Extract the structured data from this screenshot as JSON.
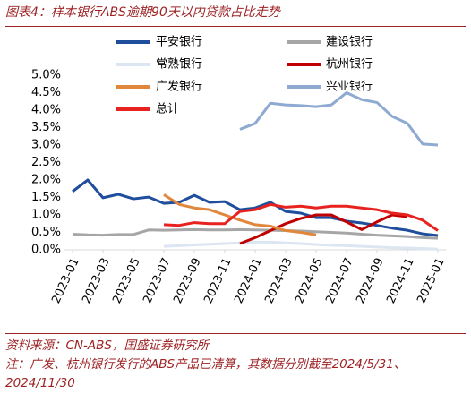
{
  "chart_data": {
    "type": "line",
    "title": "图表4：样本银行ABS逾期90天以内贷款占比走势",
    "categories": [
      "2023-01",
      null,
      "2023-03",
      null,
      "2023-05",
      null,
      "2023-07",
      null,
      "2023-09",
      null,
      "2023-11",
      null,
      "2024-01",
      null,
      "2024-03",
      null,
      "2024-05",
      null,
      "2024-07",
      null,
      "2024-09",
      null,
      "2024-11",
      null,
      "2025-01"
    ],
    "series": [
      {
        "name": "平安银行",
        "color": "#1f4e9c",
        "values": [
          1.67,
          2.0,
          1.49,
          1.59,
          1.46,
          1.51,
          1.33,
          1.36,
          1.56,
          1.36,
          1.38,
          1.15,
          1.2,
          1.36,
          1.1,
          1.05,
          0.92,
          0.92,
          0.82,
          0.77,
          0.7,
          0.62,
          0.56,
          0.46,
          0.41
        ]
      },
      {
        "name": "建设银行",
        "color": "#a6a6a6",
        "values": [
          0.45,
          0.43,
          0.42,
          0.44,
          0.44,
          0.57,
          0.56,
          0.57,
          0.58,
          0.57,
          0.57,
          0.58,
          0.57,
          0.56,
          0.55,
          0.54,
          0.52,
          0.5,
          0.48,
          0.45,
          0.42,
          0.4,
          0.38,
          0.35,
          0.33
        ]
      },
      {
        "name": "常熟银行",
        "color": "#dce6f2",
        "values": [
          null,
          null,
          null,
          null,
          null,
          null,
          0.1,
          0.12,
          0.14,
          0.16,
          0.18,
          0.2,
          0.22,
          0.22,
          0.2,
          0.18,
          0.15,
          0.13,
          0.12,
          0.1,
          0.08,
          0.06,
          0.05,
          0.04,
          0.02
        ]
      },
      {
        "name": "杭州银行",
        "color": "#c00000",
        "values": [
          null,
          null,
          null,
          null,
          null,
          null,
          null,
          null,
          null,
          null,
          null,
          0.18,
          0.35,
          0.55,
          0.75,
          0.9,
          1.0,
          1.0,
          0.8,
          0.58,
          0.8,
          1.0,
          0.95,
          null,
          null
        ]
      },
      {
        "name": "广发银行",
        "color": "#e0873c",
        "values": [
          null,
          null,
          null,
          null,
          null,
          null,
          1.58,
          1.3,
          1.2,
          1.15,
          1.0,
          0.85,
          0.72,
          0.68,
          0.55,
          0.5,
          0.43,
          null,
          null,
          null,
          null,
          null,
          null,
          null,
          null
        ]
      },
      {
        "name": "兴业银行",
        "color": "#8eaad2",
        "values": [
          null,
          null,
          null,
          null,
          null,
          null,
          null,
          null,
          null,
          null,
          null,
          3.45,
          3.62,
          4.2,
          4.15,
          4.13,
          4.1,
          4.15,
          4.5,
          4.3,
          4.22,
          3.82,
          3.62,
          3.03,
          3.0
        ]
      },
      {
        "name": "总计",
        "color": "#e8221e",
        "values": [
          null,
          null,
          null,
          null,
          null,
          null,
          0.72,
          0.7,
          0.78,
          0.75,
          0.75,
          1.1,
          1.15,
          1.3,
          1.22,
          1.25,
          1.2,
          1.25,
          1.25,
          1.2,
          1.15,
          1.05,
          1.0,
          0.85,
          0.55
        ]
      }
    ],
    "ylim": [
      0,
      5
    ],
    "yticks": [
      {
        "value": 0,
        "label": "0.0%"
      },
      {
        "value": 0.5,
        "label": "0.5%"
      },
      {
        "value": 1,
        "label": "1.0%"
      },
      {
        "value": 1.5,
        "label": "1.5%"
      },
      {
        "value": 2,
        "label": "2.0%"
      },
      {
        "value": 2.5,
        "label": "2.5%"
      },
      {
        "value": 3,
        "label": "3.0%"
      },
      {
        "value": 3.5,
        "label": "3.5%"
      },
      {
        "value": 4,
        "label": "4.0%"
      },
      {
        "value": 4.5,
        "label": "4.5%"
      },
      {
        "value": 5,
        "label": "5.0%"
      }
    ],
    "grid": false,
    "source": "资料来源：CN-ABS，国盛证券研究所",
    "note": "注：广发、杭州银行发行的ABS产品已清算，其数据分别截至2024/5/31、2024/11/30"
  }
}
